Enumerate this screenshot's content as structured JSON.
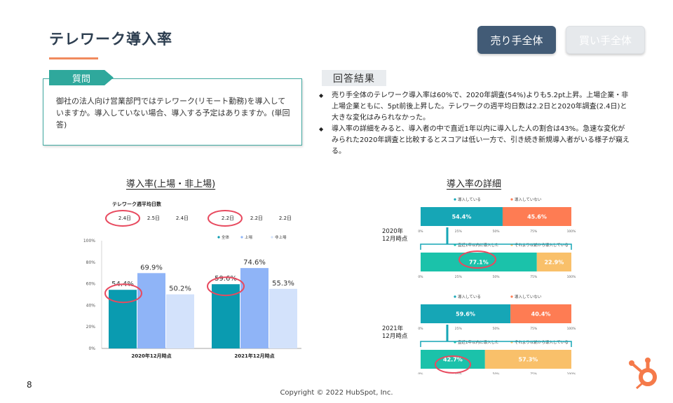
{
  "page": {
    "title": "テレワーク導入率",
    "buttons": {
      "sellers": "売り手全体",
      "buyers": "買い手全体"
    },
    "question_tab": "質問",
    "question_text": "御社の法人向け営業部門ではテレワーク(リモート勤務)を導入していますか。導入していない場合、導入する予定はありますか。(単回答)",
    "result_tab": "回答結果",
    "results": [
      "売り手全体のテレワーク導入率は60%で、2020年調査(54%)よりも5.2pt上昇。上場企業・非上場企業ともに、5pt前後上昇した。テレワークの週平均日数は2.2日と2020年調査(2.4日)と大きな変化はみられなかった。",
      "導入率の詳細をみると、導入者の中で直近1年以内に導入した人の割合は43%。急速な変化がみられた2020年調査と比較するとスコアは低い一方で、引き続き新規導入者がいる様子が窺える。"
    ],
    "page_number": "8",
    "copyright": "Copyright © 2022 HubSpot, Inc."
  },
  "colors": {
    "title": "#2d3e50",
    "accent": "#f08a5d",
    "all": "#0a9bb0",
    "listed": "#8fb4f7",
    "unlisted": "#d3e2fb",
    "adopted": "#16a6b6",
    "not_adopted": "#fe7c53",
    "recent": "#1bc2aa",
    "earlier": "#f9c06a",
    "highlight": "#e84a5f"
  },
  "chart_data": [
    {
      "type": "bar",
      "title": "導入率(上場・非上場)",
      "categories": [
        "2020年12月時点",
        "2021年12月時点"
      ],
      "series": [
        {
          "name": "全体",
          "values": [
            54.4,
            59.6
          ]
        },
        {
          "name": "上場",
          "values": [
            69.9,
            74.6
          ]
        },
        {
          "name": "非上場",
          "values": [
            50.2,
            55.3
          ]
        }
      ],
      "ylim": [
        0,
        100
      ],
      "yticks": [
        "0%",
        "20%",
        "40%",
        "60%",
        "80%",
        "100%"
      ],
      "value_labels": [
        [
          "54.4%",
          "69.9%",
          "50.2%"
        ],
        [
          "59.6%",
          "74.6%",
          "55.3%"
        ]
      ],
      "days_title": "テレワーク週平均日数",
      "days": [
        [
          "2.4日",
          "2.5日",
          "2.4日"
        ],
        [
          "2.2日",
          "2.2日",
          "2.2日"
        ]
      ],
      "legend_position": "top-right",
      "highlighted_values": [
        "54.4%",
        "59.6%"
      ],
      "highlighted_days": [
        "2.4日",
        "2.2日"
      ]
    },
    {
      "type": "bar",
      "title": "導入率の詳細",
      "orientation": "horizontal-stacked",
      "axis_ticks": [
        "0%",
        "25%",
        "50%",
        "75%",
        "100%"
      ],
      "groups": [
        {
          "label": "2020年\n12月時点",
          "adoption": {
            "legend": [
              "導入している",
              "導入していない"
            ],
            "values": [
              54.4,
              45.6
            ],
            "labels": [
              "54.4%",
              "45.6%"
            ]
          },
          "timing": {
            "legend": [
              "直近1年以内に導入した",
              "それより以前から導入している"
            ],
            "values": [
              77.1,
              22.9
            ],
            "labels": [
              "77.1%",
              "22.9%"
            ]
          }
        },
        {
          "label": "2021年\n12月時点",
          "adoption": {
            "legend": [
              "導入している",
              "導入していない"
            ],
            "values": [
              59.6,
              40.4
            ],
            "labels": [
              "59.6%",
              "40.4%"
            ]
          },
          "timing": {
            "legend": [
              "直近1年以内に導入した",
              "それより以前から導入している"
            ],
            "values": [
              42.7,
              57.3
            ],
            "labels": [
              "42.7%",
              "57.3%"
            ]
          }
        }
      ],
      "highlighted_values": [
        "77.1%",
        "42.7%"
      ]
    }
  ]
}
